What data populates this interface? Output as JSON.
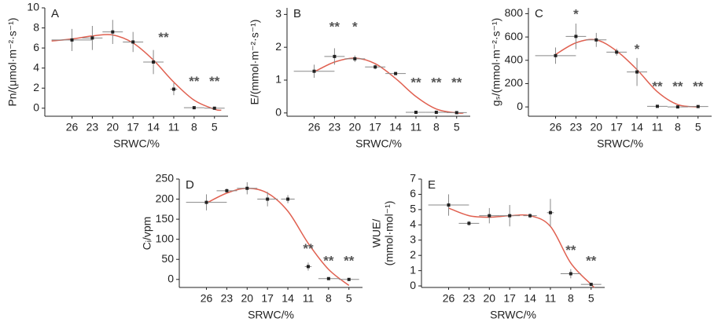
{
  "chart_data": [
    {
      "type": "scatter",
      "label": "A",
      "ylabel": [
        "Pn/(μmol·m⁻²·s⁻¹)"
      ],
      "xlabel": "SRWC/%",
      "x": [
        26,
        23,
        20,
        17,
        14,
        11,
        8,
        5
      ],
      "xlim": [
        30,
        3
      ],
      "xticks": [
        26,
        23,
        20,
        17,
        14,
        11,
        8,
        5
      ],
      "values": [
        6.8,
        7.0,
        7.6,
        6.6,
        4.6,
        1.9,
        0.05,
        0.0
      ],
      "errors": [
        1.1,
        1.2,
        1.2,
        1.0,
        1.2,
        0.6,
        0.1,
        0.1
      ],
      "xerrors": [
        3,
        1.5,
        1.5,
        1.5,
        1.5,
        0.5,
        1.5,
        1.5
      ],
      "ylim": [
        -0.8,
        10
      ],
      "yticks": [
        0,
        2,
        4,
        6,
        8,
        10
      ],
      "color": "#222",
      "fit": {
        "color": "#e06050",
        "x": [
          29,
          26,
          23,
          20,
          17,
          14,
          11,
          8,
          5,
          4
        ],
        "values": [
          6.7,
          6.9,
          7.2,
          7.3,
          6.5,
          4.8,
          2.6,
          0.8,
          -0.1,
          -0.2
        ]
      },
      "annotations": [
        {
          "x": 12.5,
          "y": 7,
          "text": "**"
        },
        {
          "x": 8,
          "y": 2.6,
          "text": "**"
        },
        {
          "x": 5,
          "y": 2.6,
          "text": "**"
        }
      ]
    },
    {
      "type": "scatter",
      "label": "B",
      "ylabel": [
        "E/(mmol·m⁻²·s⁻¹)"
      ],
      "xlabel": "SRWC/%",
      "x": [
        26,
        23,
        20,
        17,
        14,
        11,
        8,
        5
      ],
      "xlim": [
        30,
        3
      ],
      "xticks": [
        26,
        23,
        20,
        17,
        14,
        11,
        8,
        5
      ],
      "values": [
        1.27,
        1.72,
        1.65,
        1.4,
        1.2,
        0.02,
        0.02,
        0.01
      ],
      "errors": [
        0.2,
        0.25,
        0.1,
        0.07,
        0.05,
        0.03,
        0.03,
        0.03
      ],
      "xerrors": [
        3,
        1.5,
        1.5,
        1.5,
        1.5,
        1.5,
        1.5,
        1.5
      ],
      "ylim": [
        -0.1,
        3.2
      ],
      "yticks": [
        0,
        1,
        2,
        3
      ],
      "color": "#222",
      "fit": {
        "color": "#e06050",
        "x": [
          26,
          23,
          20,
          17,
          14,
          11,
          8,
          5,
          4
        ],
        "values": [
          1.25,
          1.55,
          1.67,
          1.5,
          1.05,
          0.5,
          0.12,
          0.0,
          0.0
        ]
      },
      "annotations": [
        {
          "x": 23,
          "y": 2.6,
          "text": "**"
        },
        {
          "x": 20,
          "y": 2.6,
          "text": "*"
        },
        {
          "x": 11,
          "y": 0.9,
          "text": "**"
        },
        {
          "x": 8,
          "y": 0.9,
          "text": "**"
        },
        {
          "x": 5,
          "y": 0.9,
          "text": "**"
        }
      ]
    },
    {
      "type": "scatter",
      "label": "C",
      "ylabel": [
        "gₛ/(mmol·m⁻²·s⁻¹)"
      ],
      "xlabel": "SRWC/%",
      "x": [
        26,
        23,
        20,
        17,
        14,
        11,
        8,
        5
      ],
      "xlim": [
        30,
        3
      ],
      "xticks": [
        26,
        23,
        20,
        17,
        14,
        11,
        8,
        5
      ],
      "values": [
        440,
        605,
        575,
        470,
        300,
        5,
        0,
        3
      ],
      "errors": [
        70,
        110,
        60,
        30,
        120,
        8,
        8,
        8
      ],
      "xerrors": [
        3,
        1.5,
        1.5,
        1.5,
        1.5,
        1.5,
        1.5,
        1.5
      ],
      "ylim": [
        -80,
        850
      ],
      "yticks": [
        0,
        200,
        400,
        600,
        800
      ],
      "color": "#222",
      "fit": {
        "color": "#e06050",
        "x": [
          26,
          23,
          20,
          17,
          14,
          11,
          8,
          5
        ],
        "values": [
          450,
          550,
          575,
          480,
          320,
          130,
          20,
          0
        ]
      },
      "annotations": [
        {
          "x": 23,
          "y": 790,
          "text": "*"
        },
        {
          "x": 14,
          "y": 490,
          "text": "*"
        },
        {
          "x": 11,
          "y": 170,
          "text": "**"
        },
        {
          "x": 8,
          "y": 170,
          "text": "**"
        },
        {
          "x": 5,
          "y": 170,
          "text": "**"
        }
      ]
    },
    {
      "type": "scatter",
      "label": "D",
      "ylabel": [
        "Cᵢ/vpm"
      ],
      "xlabel": "SRWC/%",
      "x": [
        26,
        23,
        20,
        17,
        14,
        11,
        8,
        5
      ],
      "xlim": [
        30,
        3
      ],
      "xticks": [
        26,
        23,
        20,
        17,
        14,
        11,
        8,
        5
      ],
      "values": [
        192,
        221,
        227,
        200,
        200,
        32,
        2,
        0
      ],
      "errors": [
        20,
        5,
        15,
        18,
        10,
        10,
        2,
        2
      ],
      "xerrors": [
        3,
        1.5,
        1.5,
        1.5,
        1,
        0.5,
        1.5,
        1.5
      ],
      "ylim": [
        -20,
        250
      ],
      "yticks": [
        0,
        50,
        100,
        150,
        200,
        250
      ],
      "color": "#222",
      "fit": {
        "color": "#e06050",
        "x": [
          26,
          23,
          20,
          17,
          14,
          11,
          8,
          5
        ],
        "values": [
          190,
          215,
          227,
          215,
          170,
          90,
          25,
          -15
        ]
      },
      "annotations": [
        {
          "x": 11,
          "y": 75,
          "text": "**"
        },
        {
          "x": 8,
          "y": 45,
          "text": "**"
        },
        {
          "x": 5,
          "y": 45,
          "text": "**"
        }
      ]
    },
    {
      "type": "scatter",
      "label": "E",
      "ylabel": [
        "WUE/",
        "(mmol·mol⁻¹)"
      ],
      "xlabel": "SRWC/%",
      "x": [
        26,
        23,
        20,
        17,
        14,
        11,
        8,
        5
      ],
      "xlim": [
        30,
        3
      ],
      "xticks": [
        26,
        23,
        20,
        17,
        14,
        11,
        8,
        5
      ],
      "values": [
        5.3,
        4.1,
        4.6,
        4.6,
        4.6,
        4.8,
        0.8,
        0.1
      ],
      "errors": [
        0.7,
        0.15,
        0.5,
        0.7,
        0.15,
        0.9,
        0.3,
        0.1
      ],
      "xerrors": [
        3,
        1.5,
        1.5,
        1.5,
        1,
        0.5,
        1.5,
        1.5
      ],
      "ylim": [
        -0.1,
        7
      ],
      "yticks": [
        0,
        1,
        2,
        3,
        4,
        5,
        6,
        7
      ],
      "color": "#222",
      "fit": {
        "color": "#e06050",
        "x": [
          26,
          23,
          20,
          17,
          14,
          11,
          8,
          5,
          4.5
        ],
        "values": [
          5.1,
          4.6,
          4.5,
          4.6,
          4.6,
          3.9,
          1.5,
          0.1,
          -0.1
        ]
      },
      "annotations": [
        {
          "x": 8,
          "y": 2.3,
          "text": "**"
        },
        {
          "x": 5,
          "y": 1.6,
          "text": "**"
        }
      ]
    }
  ]
}
